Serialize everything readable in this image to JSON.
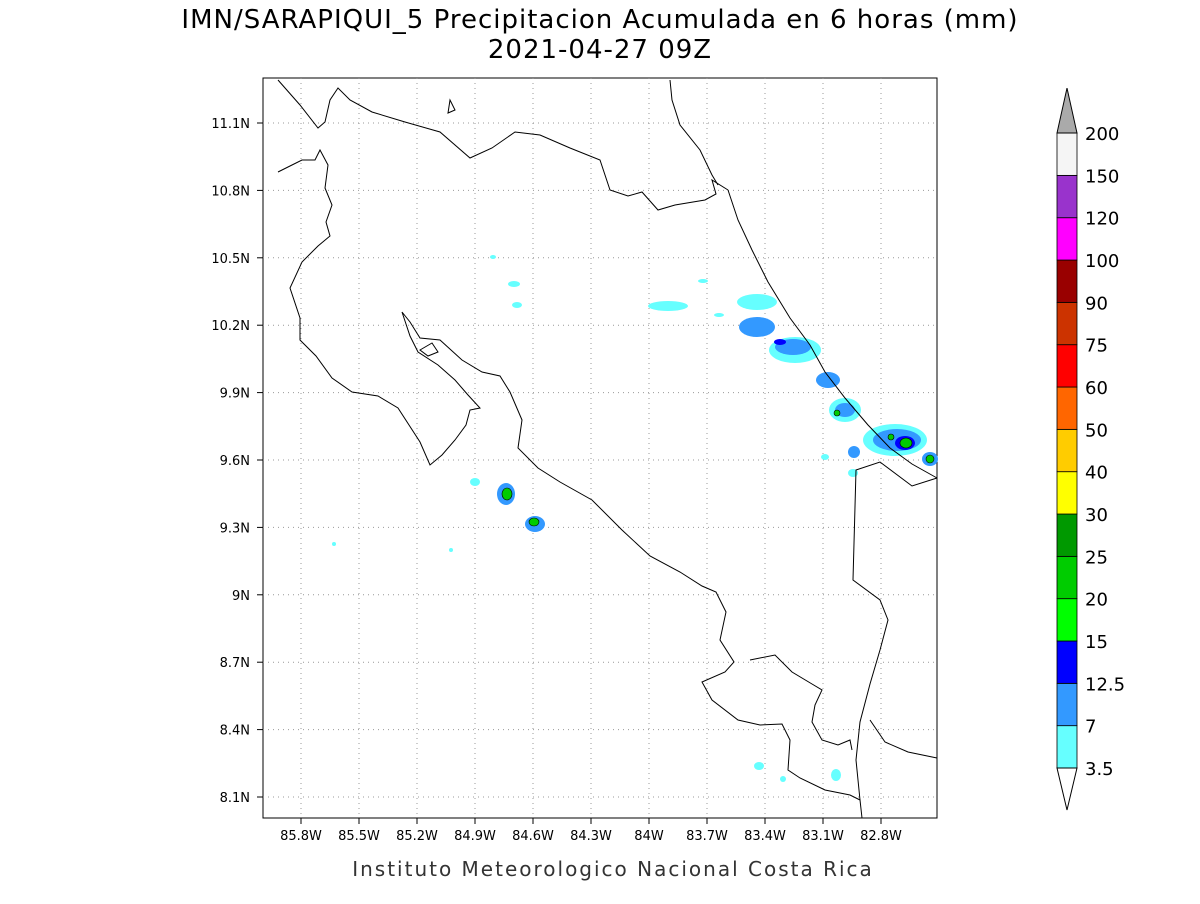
{
  "title": "IMN/SARAPIQUI_5 Precipitacion Acumulada en 6 horas (mm)",
  "subtitle": "2021-04-27 09Z",
  "map": {
    "x_labels": [
      "85.8W",
      "85.5W",
      "85.2W",
      "84.9W",
      "84.6W",
      "84.3W",
      "84W",
      "83.7W",
      "83.4W",
      "83.1W",
      "82.8W"
    ],
    "y_labels": [
      "11.1N",
      "10.8N",
      "10.5N",
      "10.2N",
      "9.9N",
      "9.6N",
      "9.3N",
      "9N",
      "8.7N",
      "8.4N",
      "8.1N"
    ],
    "grid": true
  },
  "colorbar": {
    "labels": [
      "3.5",
      "7",
      "12.5",
      "15",
      "20",
      "25",
      "30",
      "40",
      "50",
      "60",
      "75",
      "90",
      "100",
      "120",
      "150",
      "200"
    ],
    "colors": [
      "#66ffff",
      "#3399ff",
      "#0000ff",
      "#00ff00",
      "#00cc00",
      "#009900",
      "#ffff00",
      "#ffcc00",
      "#ff6600",
      "#ff0000",
      "#cc3300",
      "#990000",
      "#ff00ff",
      "#9933cc",
      "#f5f5f5"
    ],
    "over_color": "#aaaaaa",
    "under_color": "#ffffff"
  },
  "footer": "Instituto Meteorologico Nacional Costa Rica"
}
